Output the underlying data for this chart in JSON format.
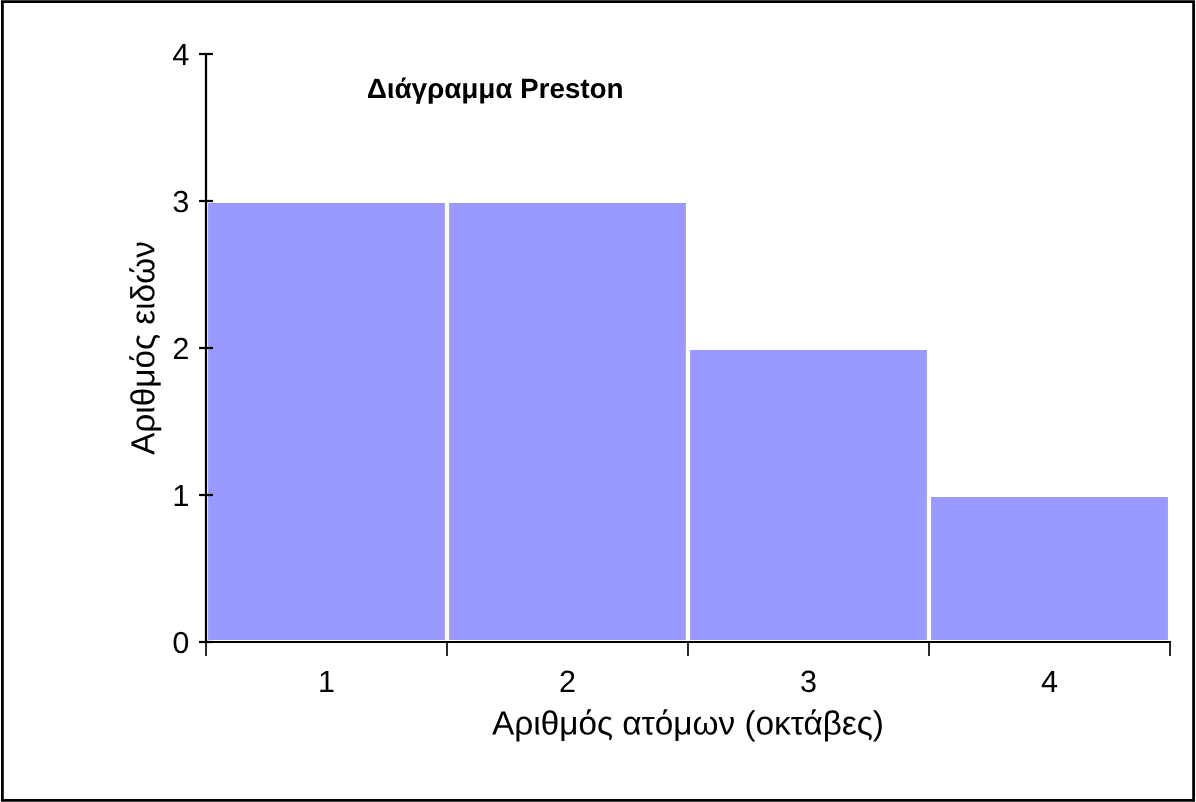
{
  "chart_data": {
    "type": "bar",
    "title": "Διάγραμμα Preston",
    "xlabel": "Αριθμός ατόμων (οκτάβες)",
    "ylabel": "Αριθμός ειδών",
    "categories": [
      "1",
      "2",
      "3",
      "4"
    ],
    "values": [
      3,
      3,
      2,
      1
    ],
    "color": "#9999ff",
    "ylim": [
      0,
      4
    ],
    "yticks": [
      0,
      1,
      2,
      3,
      4
    ],
    "grid": false,
    "legend": false
  }
}
